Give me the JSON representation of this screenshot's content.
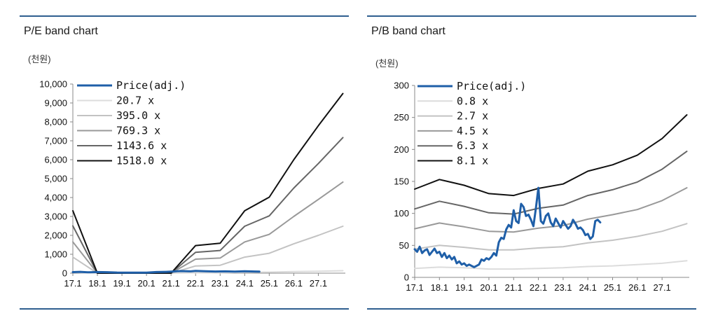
{
  "charts": [
    {
      "title": "P/E band chart",
      "unit": "(천원)",
      "chart_data": {
        "type": "line",
        "title": "P/E band chart",
        "ylabel": "(천원)",
        "ylim": [
          0,
          10000
        ],
        "yticks": [
          0,
          1000,
          2000,
          3000,
          4000,
          5000,
          6000,
          7000,
          8000,
          9000,
          10000
        ],
        "ytick_labels": [
          "0",
          "1,000",
          "2,000",
          "3,000",
          "4,000",
          "5,000",
          "6,000",
          "7,000",
          "8,000",
          "9,000",
          "10,000"
        ],
        "xlim": [
          2017.0,
          2028.1
        ],
        "xticks": [
          2017.0,
          2018.0,
          2019.0,
          2020.0,
          2021.0,
          2022.0,
          2023.0,
          2024.0,
          2025.0,
          2026.0,
          2027.0
        ],
        "xtick_labels": [
          "17.1",
          "18.1",
          "19.1",
          "20.1",
          "21.1",
          "22.1",
          "23.1",
          "24.1",
          "25.1",
          "26.1",
          "27.1"
        ],
        "series": [
          {
            "name": "Price(adj.)",
            "color": "#1f5fa8",
            "width": 3,
            "x": [
              2017.0,
              2017.3,
              2017.6,
              2018.0,
              2018.4,
              2018.8,
              2019.2,
              2019.6,
              2020.0,
              2020.4,
              2020.8,
              2021.0,
              2021.4,
              2021.8,
              2022.0,
              2022.4,
              2022.8,
              2023.2,
              2023.6,
              2024.0,
              2024.4,
              2024.6
            ],
            "y": [
              55,
              70,
              45,
              60,
              50,
              35,
              30,
              25,
              30,
              60,
              70,
              80,
              110,
              95,
              120,
              100,
              90,
              95,
              85,
              100,
              90,
              85
            ]
          },
          {
            "name": "20.7 x",
            "color": "#dcdcdc",
            "width": 2,
            "x": [
              2017.0,
              2018.0,
              2019.0,
              2020.0,
              2021.0,
              2022.0,
              2023.0,
              2024.0,
              2025.0,
              2026.0,
              2027.0,
              2028.0
            ],
            "y": [
              45,
              0,
              0,
              0,
              0,
              20,
              22,
              45,
              55,
              80,
              100,
              130
            ]
          },
          {
            "name": "395.0 x",
            "color": "#c3c3c3",
            "width": 2,
            "x": [
              2017.0,
              2018.0,
              2019.0,
              2020.0,
              2021.0,
              2022.0,
              2023.0,
              2024.0,
              2025.0,
              2026.0,
              2027.0,
              2028.0
            ],
            "y": [
              850,
              0,
              0,
              0,
              0,
              380,
              420,
              850,
              1050,
              1550,
              2000,
              2480
            ]
          },
          {
            "name": "769.3 x",
            "color": "#999999",
            "width": 2,
            "x": [
              2017.0,
              2018.0,
              2019.0,
              2020.0,
              2021.0,
              2022.0,
              2023.0,
              2024.0,
              2025.0,
              2026.0,
              2027.0,
              2028.0
            ],
            "y": [
              1650,
              0,
              0,
              0,
              0,
              740,
              800,
              1650,
              2050,
              3000,
              3900,
              4820
            ]
          },
          {
            "name": "1143.6 x",
            "color": "#666666",
            "width": 2,
            "x": [
              2017.0,
              2018.0,
              2019.0,
              2020.0,
              2021.0,
              2022.0,
              2023.0,
              2024.0,
              2025.0,
              2026.0,
              2027.0,
              2028.0
            ],
            "y": [
              2500,
              0,
              0,
              0,
              0,
              1100,
              1200,
              2480,
              3030,
              4500,
              5800,
              7170
            ]
          },
          {
            "name": "1518.0 x",
            "color": "#111111",
            "width": 2,
            "x": [
              2017.0,
              2018.0,
              2019.0,
              2020.0,
              2021.0,
              2022.0,
              2023.0,
              2024.0,
              2025.0,
              2026.0,
              2027.0,
              2028.0
            ],
            "y": [
              3300,
              0,
              0,
              0,
              0,
              1460,
              1580,
              3300,
              4020,
              6000,
              7800,
              9500
            ]
          }
        ],
        "legend": "top-left"
      }
    },
    {
      "title": "P/B band chart",
      "unit": "(천원)",
      "chart_data": {
        "type": "line",
        "title": "P/B band chart",
        "ylabel": "(천원)",
        "ylim": [
          0,
          300
        ],
        "yticks": [
          0,
          50,
          100,
          150,
          200,
          250,
          300
        ],
        "ytick_labels": [
          "0",
          "50",
          "100",
          "150",
          "200",
          "250",
          "300"
        ],
        "xlim": [
          2017.0,
          2028.1
        ],
        "xticks": [
          2017.0,
          2018.0,
          2019.0,
          2020.0,
          2021.0,
          2022.0,
          2023.0,
          2024.0,
          2025.0,
          2026.0,
          2027.0
        ],
        "xtick_labels": [
          "17.1",
          "18.1",
          "19.1",
          "20.1",
          "21.1",
          "22.1",
          "23.1",
          "24.1",
          "25.1",
          "26.1",
          "27.1"
        ],
        "series": [
          {
            "name": "Price(adj.)",
            "color": "#1f5fa8",
            "width": 3,
            "x": [
              2017.0,
              2017.1,
              2017.2,
              2017.3,
              2017.4,
              2017.5,
              2017.6,
              2017.7,
              2017.8,
              2017.9,
              2018.0,
              2018.1,
              2018.2,
              2018.3,
              2018.4,
              2018.5,
              2018.6,
              2018.7,
              2018.8,
              2018.9,
              2019.0,
              2019.1,
              2019.2,
              2019.3,
              2019.4,
              2019.5,
              2019.6,
              2019.7,
              2019.8,
              2019.9,
              2020.0,
              2020.1,
              2020.2,
              2020.3,
              2020.4,
              2020.5,
              2020.6,
              2020.7,
              2020.8,
              2020.9,
              2021.0,
              2021.1,
              2021.2,
              2021.3,
              2021.4,
              2021.5,
              2021.6,
              2021.7,
              2021.8,
              2021.9,
              2022.0,
              2022.1,
              2022.2,
              2022.3,
              2022.4,
              2022.5,
              2022.6,
              2022.7,
              2022.8,
              2022.9,
              2023.0,
              2023.1,
              2023.2,
              2023.3,
              2023.4,
              2023.5,
              2023.6,
              2023.7,
              2023.8,
              2023.9,
              2024.0,
              2024.1,
              2024.2,
              2024.3,
              2024.4,
              2024.5
            ],
            "y": [
              44,
              40,
              48,
              38,
              42,
              44,
              35,
              40,
              45,
              38,
              40,
              32,
              38,
              30,
              34,
              28,
              32,
              22,
              25,
              20,
              22,
              18,
              20,
              18,
              16,
              18,
              20,
              28,
              26,
              30,
              28,
              32,
              38,
              34,
              55,
              62,
              60,
              75,
              82,
              78,
              105,
              88,
              85,
              115,
              110,
              96,
              98,
              90,
              80,
              108,
              140,
              88,
              84,
              96,
              100,
              86,
              80,
              92,
              85,
              78,
              88,
              82,
              76,
              80,
              90,
              84,
              76,
              78,
              74,
              66,
              68,
              60,
              64,
              88,
              90,
              86
            ]
          },
          {
            "name": "0.8 x",
            "color": "#dcdcdc",
            "width": 2,
            "x": [
              2017.0,
              2018.0,
              2019.0,
              2020.0,
              2021.0,
              2022.0,
              2023.0,
              2024.0,
              2025.0,
              2026.0,
              2027.0,
              2028.0
            ],
            "y": [
              14,
              16,
              15,
              13,
              13,
              14,
              15,
              17,
              18,
              20,
              22,
              26
            ]
          },
          {
            "name": "2.7 x",
            "color": "#c3c3c3",
            "width": 2,
            "x": [
              2017.0,
              2018.0,
              2019.0,
              2020.0,
              2021.0,
              2022.0,
              2023.0,
              2024.0,
              2025.0,
              2026.0,
              2027.0,
              2028.0
            ],
            "y": [
              44,
              50,
              47,
              43,
              43,
              46,
              48,
              54,
              58,
              64,
              72,
              84
            ]
          },
          {
            "name": "4.5 x",
            "color": "#999999",
            "width": 2,
            "x": [
              2017.0,
              2018.0,
              2019.0,
              2020.0,
              2021.0,
              2022.0,
              2023.0,
              2024.0,
              2025.0,
              2026.0,
              2027.0,
              2028.0
            ],
            "y": [
              76,
              85,
              79,
              72,
              71,
              77,
              81,
              91,
              98,
              106,
              120,
              140
            ]
          },
          {
            "name": "6.3 x",
            "color": "#666666",
            "width": 2,
            "x": [
              2017.0,
              2018.0,
              2019.0,
              2020.0,
              2021.0,
              2022.0,
              2023.0,
              2024.0,
              2025.0,
              2026.0,
              2027.0,
              2028.0
            ],
            "y": [
              107,
              119,
              111,
              101,
              99,
              108,
              113,
              128,
              137,
              149,
              169,
              197
            ]
          },
          {
            "name": "8.1 x",
            "color": "#111111",
            "width": 2,
            "x": [
              2017.0,
              2018.0,
              2019.0,
              2020.0,
              2021.0,
              2022.0,
              2023.0,
              2024.0,
              2025.0,
              2026.0,
              2027.0,
              2028.0
            ],
            "y": [
              138,
              153,
              144,
              131,
              128,
              139,
              146,
              166,
              176,
              191,
              217,
              254
            ]
          }
        ],
        "legend": "top-left"
      }
    }
  ]
}
